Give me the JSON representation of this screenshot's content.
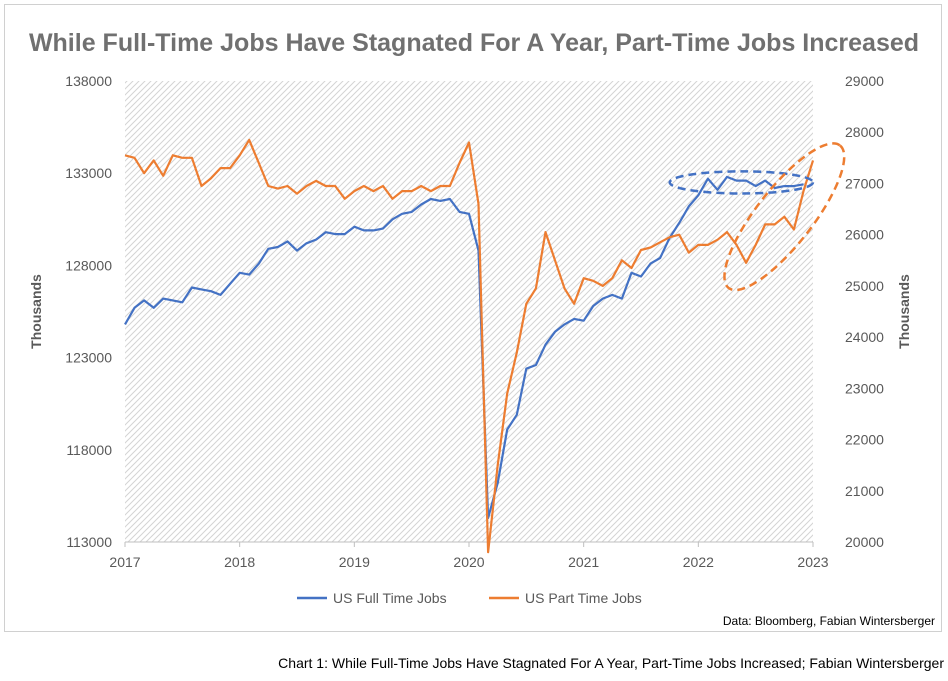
{
  "chart_data": {
    "type": "line",
    "title": "While Full-Time Jobs Have Stagnated For A Year, Part-Time Jobs Increased",
    "ylabel_left": "Thousands",
    "ylabel_right": "Thousands",
    "xlim": [
      2017.0,
      2023.0
    ],
    "ylim_left": [
      113000,
      138000
    ],
    "ylim_right": [
      20000,
      29000
    ],
    "x_ticks": [
      "2017",
      "2018",
      "2019",
      "2020",
      "2021",
      "2022",
      "2023"
    ],
    "y_ticks_left": [
      "113000",
      "118000",
      "123000",
      "128000",
      "133000",
      "138000"
    ],
    "y_ticks_right": [
      "20000",
      "21000",
      "22000",
      "23000",
      "24000",
      "25000",
      "26000",
      "27000",
      "28000",
      "29000"
    ],
    "legend_position": "bottom",
    "grid": false,
    "plot_background": "diagonal-hatch",
    "source_note": "Data: Bloomberg, Fabian Wintersberger",
    "series": [
      {
        "name": "US Full Time Jobs",
        "axis": "left",
        "color": "#4472C4",
        "x": [
          2017.0,
          2017.083,
          2017.167,
          2017.25,
          2017.333,
          2017.417,
          2017.5,
          2017.583,
          2017.667,
          2017.75,
          2017.833,
          2017.917,
          2018.0,
          2018.083,
          2018.167,
          2018.25,
          2018.333,
          2018.417,
          2018.5,
          2018.583,
          2018.667,
          2018.75,
          2018.833,
          2018.917,
          2019.0,
          2019.083,
          2019.167,
          2019.25,
          2019.333,
          2019.417,
          2019.5,
          2019.583,
          2019.667,
          2019.75,
          2019.833,
          2019.917,
          2020.0,
          2020.083,
          2020.167,
          2020.25,
          2020.333,
          2020.417,
          2020.5,
          2020.583,
          2020.667,
          2020.75,
          2020.833,
          2020.917,
          2021.0,
          2021.083,
          2021.167,
          2021.25,
          2021.333,
          2021.417,
          2021.5,
          2021.583,
          2021.667,
          2021.75,
          2021.833,
          2021.917,
          2022.0,
          2022.083,
          2022.167,
          2022.25,
          2022.333,
          2022.417,
          2022.5,
          2022.583,
          2022.667,
          2022.75,
          2022.833,
          2022.917
        ],
        "values": [
          124800,
          125700,
          126100,
          125700,
          126200,
          126100,
          126000,
          126800,
          126700,
          126600,
          126400,
          127000,
          127600,
          127500,
          128100,
          128900,
          129000,
          129300,
          128800,
          129200,
          129400,
          129800,
          129700,
          129700,
          130100,
          129900,
          129900,
          130000,
          130500,
          130800,
          130900,
          131300,
          131600,
          131500,
          131600,
          130900,
          130800,
          128800,
          114300,
          116200,
          119100,
          119900,
          122400,
          122600,
          123700,
          124400,
          124800,
          125100,
          125000,
          125800,
          126200,
          126400,
          126200,
          127600,
          127400,
          128100,
          128400,
          129500,
          130300,
          131200,
          131800,
          132700,
          132100,
          132800,
          132600,
          132600,
          132300,
          132600,
          132200,
          132300,
          132300,
          132400
        ]
      },
      {
        "name": "US Part Time Jobs",
        "axis": "right",
        "color": "#ED7D31",
        "x": [
          2017.0,
          2017.083,
          2017.167,
          2017.25,
          2017.333,
          2017.417,
          2017.5,
          2017.583,
          2017.667,
          2017.75,
          2017.833,
          2017.917,
          2018.0,
          2018.083,
          2018.167,
          2018.25,
          2018.333,
          2018.417,
          2018.5,
          2018.583,
          2018.667,
          2018.75,
          2018.833,
          2018.917,
          2019.0,
          2019.083,
          2019.167,
          2019.25,
          2019.333,
          2019.417,
          2019.5,
          2019.583,
          2019.667,
          2019.75,
          2019.833,
          2019.917,
          2020.0,
          2020.083,
          2020.167,
          2020.25,
          2020.333,
          2020.417,
          2020.5,
          2020.583,
          2020.667,
          2020.75,
          2020.833,
          2020.917,
          2021.0,
          2021.083,
          2021.167,
          2021.25,
          2021.333,
          2021.417,
          2021.5,
          2021.583,
          2021.667,
          2021.75,
          2021.833,
          2021.917,
          2022.0,
          2022.083,
          2022.167,
          2022.25,
          2022.333,
          2022.417,
          2022.5,
          2022.583,
          2022.667,
          2022.75,
          2022.833,
          2022.917,
          2023.0
        ],
        "values": [
          27550,
          27500,
          27200,
          27450,
          27150,
          27550,
          27500,
          27500,
          26950,
          27100,
          27300,
          27300,
          27550,
          27850,
          27400,
          26950,
          26900,
          26950,
          26800,
          26950,
          27050,
          26950,
          26950,
          26700,
          26850,
          26950,
          26850,
          26950,
          26700,
          26850,
          26850,
          26950,
          26850,
          26950,
          26950,
          27400,
          27800,
          26600,
          19800,
          21500,
          22900,
          23700,
          24650,
          24950,
          26050,
          25500,
          24950,
          24650,
          25150,
          25100,
          25000,
          25150,
          25500,
          25350,
          25700,
          25750,
          25850,
          25950,
          26000,
          25650,
          25800,
          25800,
          25900,
          26050,
          25800,
          25450,
          25800,
          26200,
          26200,
          26350,
          26100,
          26850,
          27450
        ]
      }
    ],
    "annotations": [
      {
        "shape": "dashed-ellipse",
        "color": "#4472C4",
        "note_x": [
          2021.75,
          2023.0
        ],
        "note_y_left": [
          131900,
          133100
        ]
      },
      {
        "shape": "dashed-ellipse",
        "color": "#ED7D31",
        "note_x": [
          2022.3,
          2023.2
        ],
        "note_y_right": [
          24900,
          27800
        ]
      }
    ]
  },
  "caption": "Chart 1: While Full-Time Jobs Have Stagnated For A Year, Part-Time Jobs Increased; Fabian Wintersberger"
}
